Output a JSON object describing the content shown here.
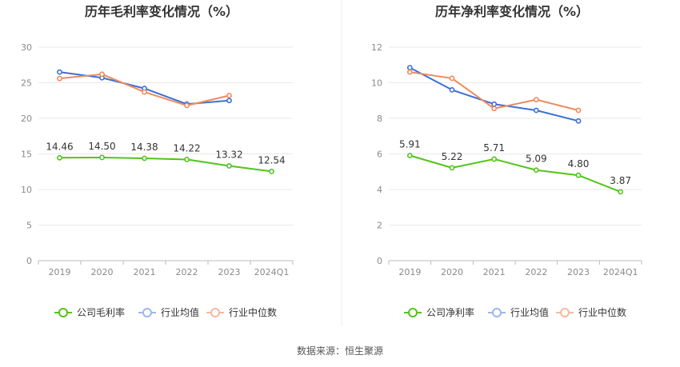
{
  "source": "数据来源：恒生聚源",
  "chart_data": [
    {
      "type": "line",
      "title": "历年毛利率变化情况（%）",
      "categories": [
        "2019",
        "2020",
        "2021",
        "2022",
        "2023",
        "2024Q1"
      ],
      "ylim": [
        0,
        30
      ],
      "yticks": [
        0,
        5,
        10,
        15,
        20,
        25,
        30
      ],
      "grid": true,
      "legend": "bottom",
      "series": [
        {
          "name": "公司毛利率",
          "color": "#52c41a",
          "values": [
            14.46,
            14.5,
            14.38,
            14.22,
            13.32,
            12.54
          ],
          "labels": [
            "14.46",
            "14.50",
            "14.38",
            "14.22",
            "13.32",
            "12.54"
          ]
        },
        {
          "name": "行业均值",
          "color": "#3b6fd8",
          "values": [
            26.5,
            25.7,
            24.2,
            22.0,
            22.5,
            null
          ]
        },
        {
          "name": "行业中位数",
          "color": "#f08a5d",
          "values": [
            25.6,
            26.2,
            23.7,
            21.8,
            23.2,
            null
          ]
        }
      ]
    },
    {
      "type": "line",
      "title": "历年净利率变化情况（%）",
      "categories": [
        "2019",
        "2020",
        "2021",
        "2022",
        "2023",
        "2024Q1"
      ],
      "ylim": [
        0,
        12
      ],
      "yticks": [
        0,
        2,
        4,
        6,
        8,
        10,
        12
      ],
      "grid": true,
      "legend": "bottom",
      "series": [
        {
          "name": "公司净利率",
          "color": "#52c41a",
          "values": [
            5.91,
            5.22,
            5.71,
            5.09,
            4.8,
            3.87
          ],
          "labels": [
            "5.91",
            "5.22",
            "5.71",
            "5.09",
            "4.80",
            "3.87"
          ]
        },
        {
          "name": "行业均值",
          "color": "#3b6fd8",
          "values": [
            10.85,
            9.6,
            8.8,
            8.45,
            7.85,
            null
          ]
        },
        {
          "name": "行业中位数",
          "color": "#f08a5d",
          "values": [
            10.6,
            10.25,
            8.55,
            9.05,
            8.45,
            null
          ]
        }
      ]
    }
  ]
}
